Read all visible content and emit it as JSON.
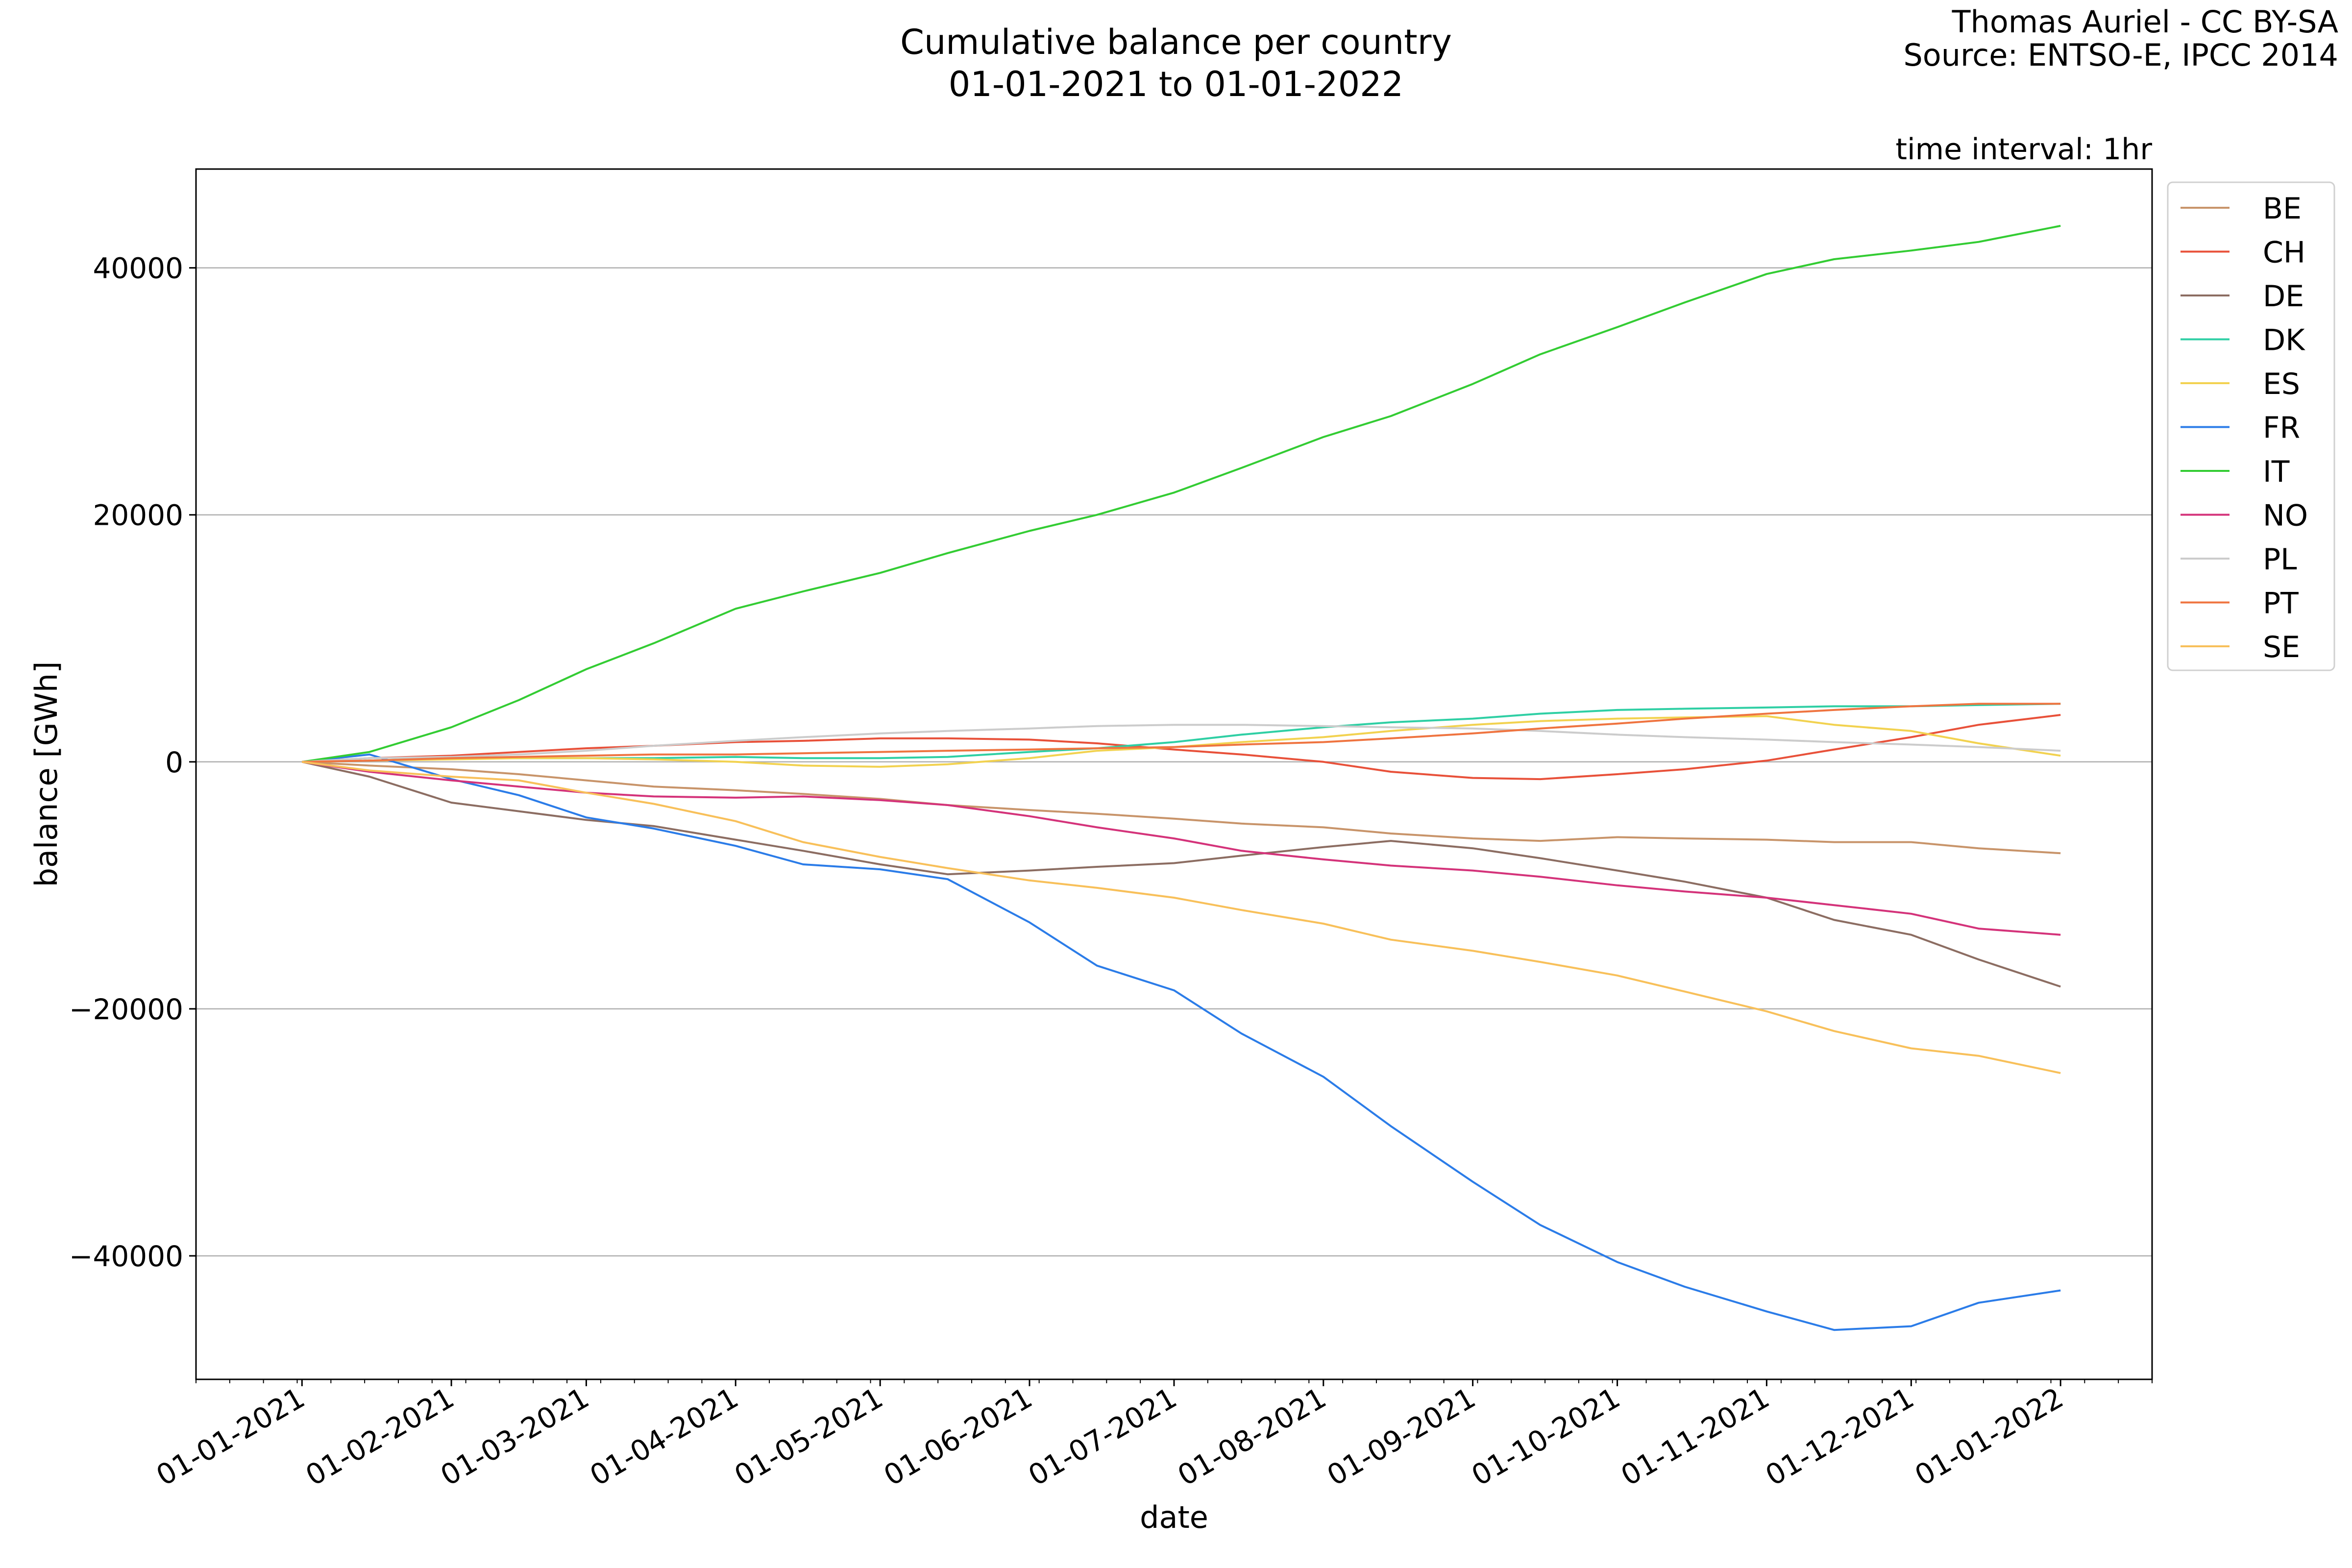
{
  "credit": {
    "author": "Thomas Auriel - CC BY-SA",
    "source": "Source: ENTSO-E, IPCC 2014"
  },
  "chart_data": {
    "type": "line",
    "title": "Cumulative balance per country",
    "subtitle": "01-01-2021 to 01-01-2022",
    "annotation": "time interval: 1hr",
    "xlabel": "date",
    "ylabel": "balance [GWh]",
    "xlim": [
      "2020-12-10",
      "2022-01-20"
    ],
    "ylim": [
      -50000,
      48000
    ],
    "x_ticks": [
      "2021-01-01",
      "2021-02-01",
      "2021-03-01",
      "2021-04-01",
      "2021-05-01",
      "2021-06-01",
      "2021-07-01",
      "2021-08-01",
      "2021-09-01",
      "2021-10-01",
      "2021-11-01",
      "2021-12-01",
      "2022-01-01"
    ],
    "x_tick_labels": [
      "01-01-2021",
      "01-02-2021",
      "01-03-2021",
      "01-04-2021",
      "01-05-2021",
      "01-06-2021",
      "01-07-2021",
      "01-08-2021",
      "01-09-2021",
      "01-10-2021",
      "01-11-2021",
      "01-12-2021",
      "01-01-2022"
    ],
    "y_ticks": [
      -40000,
      -20000,
      0,
      20000,
      40000
    ],
    "y_tick_labels": [
      "−40000",
      "−20000",
      "0",
      "20000",
      "40000"
    ],
    "grid": "horizontal",
    "legend_position": "right, outside axes top",
    "x": [
      "2021-01-01",
      "2021-01-15",
      "2021-02-01",
      "2021-02-15",
      "2021-03-01",
      "2021-03-15",
      "2021-04-01",
      "2021-04-15",
      "2021-05-01",
      "2021-05-15",
      "2021-06-01",
      "2021-06-15",
      "2021-07-01",
      "2021-07-15",
      "2021-08-01",
      "2021-08-15",
      "2021-09-01",
      "2021-09-15",
      "2021-10-01",
      "2021-10-15",
      "2021-11-01",
      "2021-11-15",
      "2021-12-01",
      "2021-12-15",
      "2022-01-01"
    ],
    "series": [
      {
        "name": "BE",
        "color": "#c8946a",
        "values": [
          0,
          -300,
          -600,
          -1000,
          -1500,
          -2000,
          -2300,
          -2600,
          -3000,
          -3500,
          -3900,
          -4200,
          -4600,
          -5000,
          -5300,
          -5800,
          -6200,
          -6400,
          -6100,
          -6200,
          -6300,
          -6500,
          -6500,
          -7000,
          -7400
        ]
      },
      {
        "name": "CH",
        "color": "#e8513a",
        "values": [
          0,
          300,
          500,
          800,
          1100,
          1300,
          1600,
          1700,
          1900,
          1900,
          1800,
          1500,
          1000,
          600,
          0,
          -800,
          -1300,
          -1400,
          -1000,
          -600,
          100,
          1000,
          2000,
          3000,
          3800
        ]
      },
      {
        "name": "DE",
        "color": "#8c6d62",
        "values": [
          0,
          -1200,
          -3300,
          -4000,
          -4700,
          -5200,
          -6300,
          -7200,
          -8300,
          -9100,
          -8800,
          -8500,
          -8200,
          -7600,
          -6900,
          -6400,
          -7000,
          -7800,
          -8800,
          -9700,
          -11000,
          -12800,
          -14000,
          -16000,
          -18200
        ]
      },
      {
        "name": "DK",
        "color": "#2fcfa4",
        "values": [
          0,
          100,
          300,
          300,
          300,
          300,
          400,
          300,
          300,
          400,
          800,
          1100,
          1600,
          2200,
          2800,
          3200,
          3500,
          3900,
          4200,
          4300,
          4400,
          4500,
          4500,
          4600,
          4700
        ]
      },
      {
        "name": "ES",
        "color": "#f2d250",
        "values": [
          0,
          100,
          200,
          300,
          300,
          200,
          0,
          -300,
          -400,
          -200,
          300,
          900,
          1200,
          1600,
          2000,
          2500,
          3000,
          3300,
          3500,
          3600,
          3700,
          3000,
          2500,
          1500,
          500
        ]
      },
      {
        "name": "FR",
        "color": "#2b7ce8",
        "values": [
          0,
          600,
          -1400,
          -2700,
          -4500,
          -5400,
          -6800,
          -8300,
          -8700,
          -9500,
          -13000,
          -16500,
          -18500,
          -22000,
          -25500,
          -29500,
          -34000,
          -37500,
          -40500,
          -42500,
          -44500,
          -46000,
          -45700,
          -43800,
          -42800
        ]
      },
      {
        "name": "IT",
        "color": "#33cc33",
        "values": [
          0,
          800,
          2800,
          5000,
          7500,
          9600,
          12400,
          13800,
          15300,
          16900,
          18700,
          20000,
          21800,
          23800,
          26300,
          28000,
          30600,
          33000,
          35200,
          37200,
          39500,
          40700,
          41400,
          42100,
          43400
        ]
      },
      {
        "name": "NO",
        "color": "#d4337a",
        "values": [
          0,
          -800,
          -1500,
          -2000,
          -2500,
          -2800,
          -2900,
          -2800,
          -3100,
          -3500,
          -4400,
          -5300,
          -6200,
          -7200,
          -7900,
          -8400,
          -8800,
          -9300,
          -10000,
          -10500,
          -11000,
          -11600,
          -12300,
          -13500,
          -14000
        ]
      },
      {
        "name": "PL",
        "color": "#cccccc",
        "values": [
          0,
          300,
          400,
          600,
          900,
          1300,
          1700,
          2000,
          2300,
          2500,
          2700,
          2900,
          3000,
          3000,
          2900,
          2800,
          2700,
          2500,
          2200,
          2000,
          1800,
          1600,
          1400,
          1200,
          900
        ]
      },
      {
        "name": "PT",
        "color": "#ef7440",
        "values": [
          0,
          100,
          300,
          400,
          500,
          600,
          600,
          700,
          800,
          900,
          1000,
          1100,
          1200,
          1400,
          1600,
          1900,
          2300,
          2700,
          3100,
          3500,
          3900,
          4200,
          4500,
          4700,
          4700
        ]
      },
      {
        "name": "SE",
        "color": "#f8c05a",
        "values": [
          0,
          -700,
          -1200,
          -1500,
          -2500,
          -3400,
          -4800,
          -6500,
          -7700,
          -8600,
          -9600,
          -10200,
          -11000,
          -12000,
          -13100,
          -14400,
          -15300,
          -16200,
          -17300,
          -18600,
          -20200,
          -21800,
          -23200,
          -23800,
          -25200
        ]
      }
    ]
  }
}
